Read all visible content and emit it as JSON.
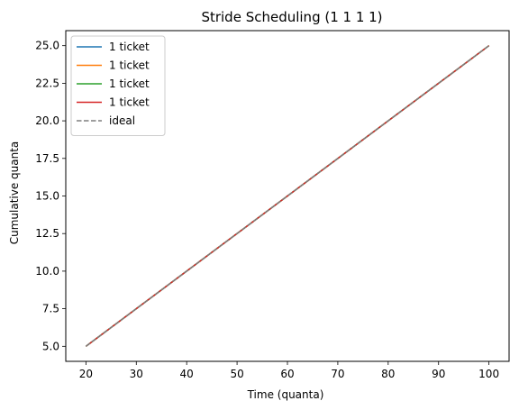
{
  "chart_data": {
    "type": "line",
    "title": "Stride Scheduling (1 1 1 1)",
    "xlabel": "Time (quanta)",
    "ylabel": "Cumulative quanta",
    "xlim": [
      16,
      104
    ],
    "ylim": [
      4.0,
      26.0
    ],
    "xticks": [
      20,
      30,
      40,
      50,
      60,
      70,
      80,
      90,
      100
    ],
    "yticks": [
      5.0,
      7.5,
      10.0,
      12.5,
      15.0,
      17.5,
      20.0,
      22.5,
      25.0
    ],
    "xtick_labels": [
      "20",
      "30",
      "40",
      "50",
      "60",
      "70",
      "80",
      "90",
      "100"
    ],
    "ytick_labels": [
      "5.0",
      "7.5",
      "10.0",
      "12.5",
      "15.0",
      "17.5",
      "20.0",
      "22.5",
      "25.0"
    ],
    "grid": false,
    "legend_position": "upper-left",
    "series": [
      {
        "name": "1 ticket",
        "color": "#1f77b4",
        "style": "solid",
        "x": [
          20,
          100
        ],
        "y": [
          5.0,
          25.0
        ]
      },
      {
        "name": "1 ticket",
        "color": "#ff7f0e",
        "style": "solid",
        "x": [
          20,
          100
        ],
        "y": [
          5.0,
          25.0
        ]
      },
      {
        "name": "1 ticket",
        "color": "#2ca02c",
        "style": "solid",
        "x": [
          20,
          100
        ],
        "y": [
          5.0,
          25.0
        ]
      },
      {
        "name": "1 ticket",
        "color": "#d62728",
        "style": "solid",
        "x": [
          20,
          100
        ],
        "y": [
          5.0,
          25.0
        ]
      },
      {
        "name": "ideal",
        "color": "#7f7f7f",
        "style": "dashed",
        "x": [
          20,
          100
        ],
        "y": [
          5.0,
          25.0
        ]
      }
    ]
  }
}
